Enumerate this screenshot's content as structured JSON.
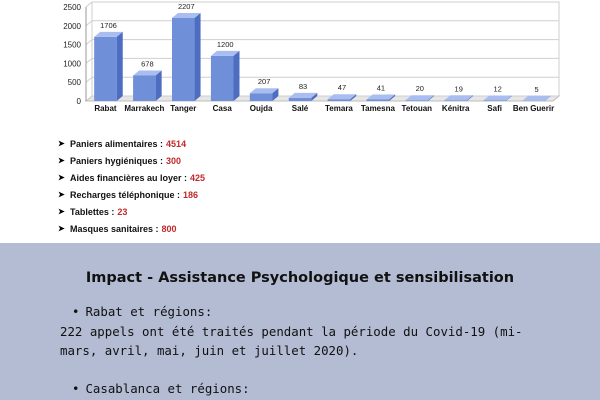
{
  "chart_data": {
    "type": "bar",
    "categories": [
      "Rabat",
      "Marrakech",
      "Tanger",
      "Casa",
      "Oujda",
      "Salé",
      "Temara",
      "Tamesna",
      "Tetouan",
      "Kénitra",
      "Safi",
      "Ben Guerir"
    ],
    "values": [
      1706,
      678,
      2207,
      1200,
      207,
      83,
      47,
      41,
      20,
      19,
      12,
      5
    ],
    "yticks": [
      0,
      500,
      1000,
      1500,
      2000,
      2500
    ],
    "ylim": [
      0,
      2500
    ],
    "grid": true,
    "bar_color": "#6f8fd8"
  },
  "kpis": [
    {
      "label": "Paniers alimentaires : ",
      "value": "4514"
    },
    {
      "label": "Paniers hygiéniques : ",
      "value": "300"
    },
    {
      "label": "Aides financières au loyer : ",
      "value": "425"
    },
    {
      "label": "Recharges téléphonique : ",
      "value": "186"
    },
    {
      "label": "Tablettes : ",
      "value": "23"
    },
    {
      "label": "Masques sanitaires : ",
      "value": "800"
    }
  ],
  "impact": {
    "title": "Impact - Assistance Psychologique et sensibilisation",
    "region1": "Rabat et régions:",
    "para1_line1": "222 appels ont été traités pendant la période du Covid-19 (mi-",
    "para1_line2": "mars, avril, mai, juin et juillet 2020).",
    "region2": "Casablanca et régions:"
  },
  "colors": {
    "accent_red": "#c0282a",
    "panel_bg": "#b3bcd3"
  }
}
